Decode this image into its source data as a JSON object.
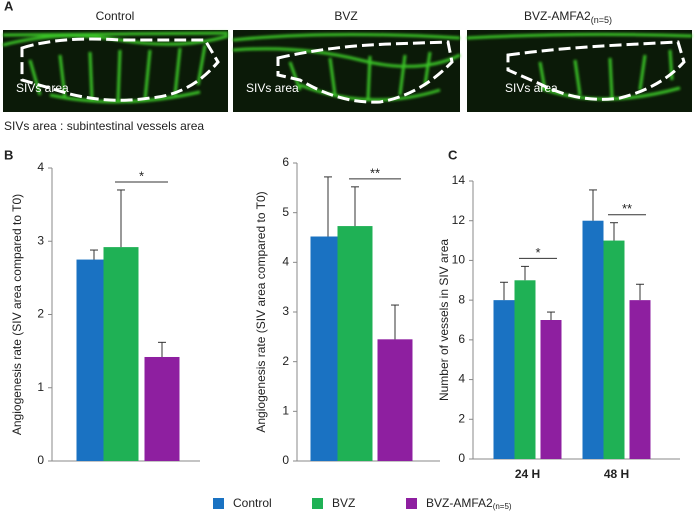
{
  "panel_labels": [
    "A",
    "B",
    "C"
  ],
  "panel_a": {
    "images": [
      {
        "title": "Control",
        "label": "SIVs area"
      },
      {
        "title": "BVZ",
        "label": "SIVs area"
      },
      {
        "title": "BVZ-AMFA2",
        "title_sub": "(n=5)",
        "label": "SIVs area"
      }
    ],
    "caption": "SIVs area : subintestinal vessels area"
  },
  "chart_data": [
    {
      "type": "bar",
      "y_label": "Angiogenesis rate (SIV area compared to T0)",
      "categories": [
        null,
        null,
        null
      ],
      "values": [
        2.75,
        2.92,
        1.42
      ],
      "errors": [
        0.13,
        0.78,
        0.2
      ],
      "colors": [
        "#1a72c2",
        "#1fb155",
        "#8e1fa0"
      ],
      "ylim": [
        0,
        4
      ],
      "yticks": [
        0,
        1,
        2,
        3,
        4
      ],
      "significance": [
        {
          "text": "*",
          "between": [
            1,
            2
          ]
        }
      ]
    },
    {
      "type": "bar",
      "y_label": "Angiogenesis rate (SIV area compared to T0)",
      "categories": [
        null,
        null,
        null
      ],
      "values": [
        4.52,
        4.73,
        2.45
      ],
      "errors": [
        1.2,
        0.79,
        0.69
      ],
      "colors": [
        "#1a72c2",
        "#1fb155",
        "#8e1fa0"
      ],
      "ylim": [
        0,
        6
      ],
      "yticks": [
        0,
        1,
        2,
        3,
        4,
        5,
        6
      ],
      "significance": [
        {
          "text": "**",
          "between": [
            1,
            2
          ]
        }
      ]
    },
    {
      "type": "bar",
      "y_label": "Number of vessels in SIV area",
      "categories": [
        "24 H",
        "48 H"
      ],
      "series": [
        {
          "name": "Control",
          "color": "#1a72c2",
          "values": [
            8,
            12
          ],
          "errors": [
            0.9,
            1.55
          ]
        },
        {
          "name": "BVZ",
          "color": "#1fb155",
          "values": [
            9,
            11
          ],
          "errors": [
            0.7,
            0.9
          ]
        },
        {
          "name": "BVZ-AMFA2",
          "name_sub": "(n=5)",
          "color": "#8e1fa0",
          "values": [
            7,
            8
          ],
          "errors": [
            0.4,
            0.8
          ]
        }
      ],
      "ylim": [
        0,
        14
      ],
      "yticks": [
        0,
        2,
        4,
        6,
        8,
        10,
        12,
        14
      ],
      "significance": [
        {
          "text": "*",
          "category": 0,
          "between": [
            1,
            2
          ]
        },
        {
          "text": "**",
          "category": 1,
          "between": [
            1,
            2
          ]
        }
      ]
    }
  ]
}
